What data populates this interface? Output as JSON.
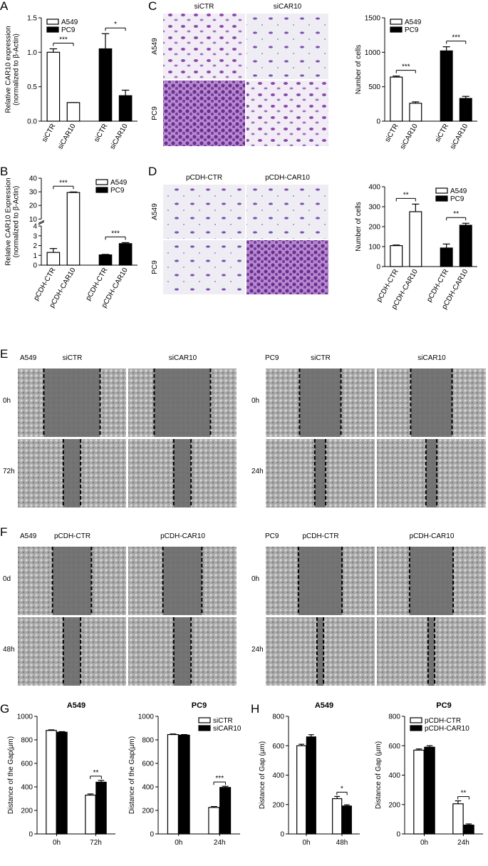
{
  "panels": [
    "A",
    "B",
    "C",
    "D",
    "E",
    "F",
    "G",
    "H"
  ],
  "panel_C": {
    "columns": [
      "siCTR",
      "siCAR10"
    ],
    "rows": [
      "A549",
      "PC9"
    ]
  },
  "panel_D": {
    "columns": [
      "pCDH-CTR",
      "pCDH-CAR10"
    ],
    "rows": [
      "A549",
      "PC9"
    ]
  },
  "panel_E": {
    "left": {
      "cell": "A549",
      "columns": [
        "siCTR",
        "siCAR10"
      ],
      "rows": [
        "0h",
        "72h"
      ]
    },
    "right": {
      "cell": "PC9",
      "columns": [
        "siCTR",
        "siCAR10"
      ],
      "rows": [
        "0h",
        "24h"
      ]
    }
  },
  "panel_F": {
    "left": {
      "cell": "A549",
      "columns": [
        "pCDH-CTR",
        "pCDH-CAR10"
      ],
      "rows": [
        "0d",
        "48h"
      ]
    },
    "right": {
      "cell": "PC9",
      "columns": [
        "pCDH-CTR",
        "pCDH-CAR10"
      ],
      "rows": [
        "0h",
        "24h"
      ]
    }
  },
  "chart_data": [
    {
      "type": "bar",
      "ylabel": [
        "Relative CAR10 expression",
        "(normalized to β-Actin)"
      ],
      "categories": [
        "siCTR",
        "siCAR10",
        "siCTR",
        "siCAR10"
      ],
      "series": [
        {
          "name": "A549",
          "color": "#ffffff",
          "values": [
            1.0,
            0.27,
            null,
            null
          ],
          "errors": [
            0.05,
            0,
            null,
            null
          ]
        },
        {
          "name": "PC9",
          "color": "#000000",
          "values": [
            null,
            null,
            1.05,
            0.37
          ],
          "errors": [
            null,
            null,
            0.22,
            0.08
          ]
        }
      ],
      "ylim": [
        0,
        1.5
      ],
      "yticks": [
        {
          "value": 0,
          "label": "0.0"
        },
        {
          "value": 0.5,
          "label": "0.5"
        },
        {
          "value": 1,
          "label": "1.0"
        },
        {
          "value": 1.5,
          "label": "1.5"
        }
      ],
      "annotations": [
        {
          "label": "***",
          "between": [
            0,
            1
          ]
        },
        {
          "label": "*",
          "between": [
            2,
            3
          ]
        }
      ],
      "legend": "upper left"
    },
    {
      "type": "bar",
      "ylabel": [
        "Relative CAR10 Expression",
        "(normalized to β-Actin)"
      ],
      "categories": [
        "pCDH-CTR",
        "pCDH-CAR10",
        "pCDH-CTR",
        "pCDH-CAR10"
      ],
      "series": [
        {
          "name": "A549",
          "color": "#ffffff",
          "values": [
            1.3,
            29.5,
            null,
            null
          ],
          "errors": [
            0.4,
            0.4,
            null,
            null
          ]
        },
        {
          "name": "PC9",
          "color": "#000000",
          "values": [
            null,
            null,
            1.05,
            2.2
          ],
          "errors": [
            null,
            null,
            0.05,
            0.1
          ]
        }
      ],
      "ylim": [
        0,
        40
      ],
      "ybreak": [
        4,
        10
      ],
      "yticks": [
        0,
        1,
        2,
        3,
        4,
        10,
        20,
        30,
        40
      ],
      "annotations": [
        {
          "label": "***",
          "between": [
            0,
            1
          ]
        },
        {
          "label": "***",
          "between": [
            2,
            3
          ]
        }
      ],
      "legend": "upper right"
    },
    {
      "type": "bar",
      "ylabel": [
        "Number of cells"
      ],
      "categories": [
        "siCTR",
        "siCAR10",
        "siCTR",
        "siCAR10"
      ],
      "series": [
        {
          "name": "A549",
          "color": "#ffffff",
          "values": [
            640,
            260,
            null,
            null
          ],
          "errors": [
            15,
            20,
            null,
            null
          ]
        },
        {
          "name": "PC9",
          "color": "#000000",
          "values": [
            null,
            null,
            1020,
            330
          ],
          "errors": [
            null,
            null,
            60,
            30
          ]
        }
      ],
      "ylim": [
        0,
        1500
      ],
      "yticks": [
        0,
        500,
        1000,
        1500
      ],
      "annotations": [
        {
          "label": "***",
          "between": [
            0,
            1
          ]
        },
        {
          "label": "***",
          "between": [
            2,
            3
          ]
        }
      ],
      "legend": "upper left"
    },
    {
      "type": "bar",
      "ylabel": [
        "Number of cells"
      ],
      "categories": [
        "pCDH-CTR",
        "pCDH-CAR10",
        "pCDH-CTR",
        "pCDH-CAR10"
      ],
      "series": [
        {
          "name": "A549",
          "color": "#ffffff",
          "values": [
            105,
            275,
            null,
            null
          ],
          "errors": [
            3,
            38,
            null,
            null
          ]
        },
        {
          "name": "PC9",
          "color": "#000000",
          "values": [
            null,
            null,
            93,
            207
          ],
          "errors": [
            null,
            null,
            20,
            10
          ]
        }
      ],
      "ylim": [
        0,
        400
      ],
      "yticks": [
        0,
        100,
        200,
        300,
        400
      ],
      "annotations": [
        {
          "label": "**",
          "between": [
            0,
            1
          ]
        },
        {
          "label": "**",
          "between": [
            2,
            3
          ]
        }
      ],
      "legend": "upper right"
    },
    {
      "type": "grouped_bar",
      "title": "A549",
      "ylabel": [
        "Distance of the Gap(μm)"
      ],
      "categories": [
        "0h",
        "72h"
      ],
      "series": [
        {
          "color": "#ffffff",
          "values": [
            880,
            330
          ],
          "errors": [
            5,
            10
          ]
        },
        {
          "color": "#000000",
          "values": [
            865,
            440
          ],
          "errors": [
            5,
            15
          ]
        }
      ],
      "ylim": [
        0,
        1000
      ],
      "yticks": [
        0,
        200,
        400,
        600,
        800,
        1000
      ],
      "annotations": [
        {
          "label": "**",
          "at": 1
        }
      ]
    },
    {
      "type": "grouped_bar",
      "title": "PC9",
      "ylabel": [
        "Distance of the Gap(μm)"
      ],
      "categories": [
        "0h",
        "24h"
      ],
      "series": [
        {
          "name": "siCTR",
          "color": "#ffffff",
          "values": [
            845,
            225
          ],
          "errors": [
            5,
            8
          ]
        },
        {
          "name": "siCAR10",
          "color": "#000000",
          "values": [
            840,
            395
          ],
          "errors": [
            5,
            10
          ]
        }
      ],
      "ylim": [
        0,
        1000
      ],
      "yticks": [
        0,
        200,
        400,
        600,
        800,
        1000
      ],
      "annotations": [
        {
          "label": "***",
          "at": 1
        }
      ],
      "legend": "upper right"
    },
    {
      "type": "grouped_bar",
      "title": "A549",
      "ylabel": [
        "Distance of Gap (μm)"
      ],
      "categories": [
        "0h",
        "48h"
      ],
      "series": [
        {
          "color": "#ffffff",
          "values": [
            600,
            240
          ],
          "errors": [
            10,
            15
          ]
        },
        {
          "color": "#000000",
          "values": [
            660,
            190
          ],
          "errors": [
            15,
            8
          ]
        }
      ],
      "ylim": [
        0,
        800
      ],
      "yticks": [
        0,
        200,
        400,
        600,
        800
      ],
      "annotations": [
        {
          "label": "*",
          "at": 1
        }
      ]
    },
    {
      "type": "grouped_bar",
      "title": "PC9",
      "ylabel": [
        "Distance of Gap (μm)"
      ],
      "categories": [
        "0h",
        "24h"
      ],
      "series": [
        {
          "name": "pCDH-CTR",
          "color": "#ffffff",
          "values": [
            570,
            205
          ],
          "errors": [
            8,
            20
          ]
        },
        {
          "name": "pCDH-CAR10",
          "color": "#000000",
          "values": [
            590,
            60
          ],
          "errors": [
            10,
            8
          ]
        }
      ],
      "ylim": [
        0,
        800
      ],
      "yticks": [
        0,
        200,
        400,
        600,
        800
      ],
      "annotations": [
        {
          "label": "**",
          "at": 1
        }
      ],
      "legend": "upper left"
    }
  ]
}
